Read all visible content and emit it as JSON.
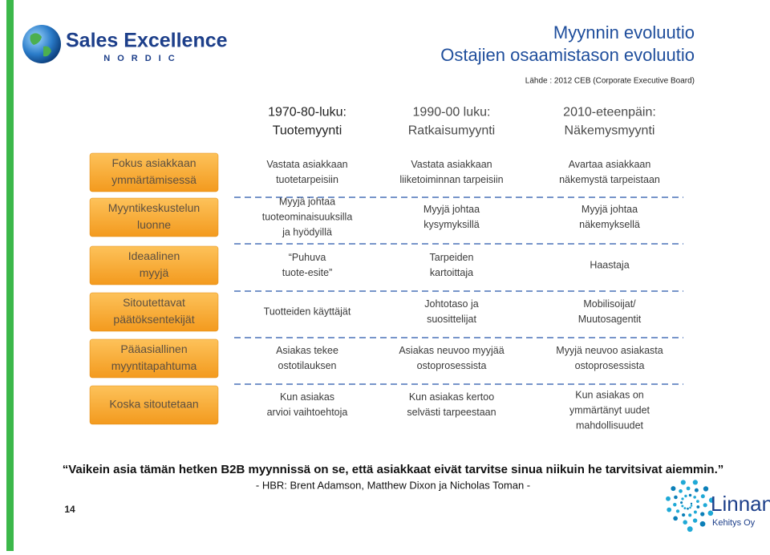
{
  "logo": {
    "name": "Sales Excellence",
    "sub": "NORDIC"
  },
  "header": {
    "title": "Myynnin evoluutio",
    "subtitle": "Ostajien osaamistason evoluutio",
    "source": "Lähde : 2012 CEB (Corporate Executive Board)"
  },
  "columns": [
    [
      "1970-80-luku:",
      "Tuotemyynti"
    ],
    [
      "1990-00 luku:",
      "Ratkaisumyynti"
    ],
    [
      "2010-eteenpäin:",
      "Näkemysmyynti"
    ]
  ],
  "rows": [
    {
      "label": [
        "Fokus asiakkaan",
        "ymmärtämisessä"
      ],
      "cells": [
        [
          "Vastata asiakkaan",
          "tuotetarpeisiin"
        ],
        [
          "Vastata asiakkaan",
          "liiketoiminnan tarpeisiin"
        ],
        [
          "Avartaa asiakkaan",
          "näkemystä tarpeistaan"
        ]
      ]
    },
    {
      "label": [
        "Myyntikeskustelun",
        "luonne"
      ],
      "cells": [
        [
          "Myyjä johtaa",
          "tuoteominaisuuksilla",
          "ja hyödyillä"
        ],
        [
          "Myyjä johtaa",
          "kysymyksillä"
        ],
        [
          "Myyjä johtaa",
          "näkemyksellä"
        ]
      ]
    },
    {
      "label": [
        "Ideaalinen",
        "myyjä"
      ],
      "cells": [
        [
          "“Puhuva",
          "tuote-esite”"
        ],
        [
          "Tarpeiden",
          "kartoittaja"
        ],
        [
          "Haastaja"
        ]
      ]
    },
    {
      "label": [
        "Sitoutettavat",
        "päätöksentekijät"
      ],
      "cells": [
        [
          "Tuotteiden käyttäjät"
        ],
        [
          "Johtotaso ja",
          "suosittelijat"
        ],
        [
          "Mobilisoijat/",
          "Muutosagentit"
        ]
      ]
    },
    {
      "label": [
        "Pääasiallinen",
        "myyntitapahtuma"
      ],
      "cells": [
        [
          "Asiakas tekee",
          "ostotilauksen"
        ],
        [
          "Asiakas neuvoo myyjää",
          "ostoprosessista"
        ],
        [
          "Myyjä neuvoo asiakasta",
          "ostoprosessista"
        ]
      ]
    },
    {
      "label": [
        "Koska sitoutetaan"
      ],
      "cells": [
        [
          "Kun asiakas",
          "arvioi vaihtoehtoja"
        ],
        [
          "Kun asiakas kertoo",
          "selvästi tarpeestaan"
        ],
        [
          "Kun asiakas on",
          "ymmärtänyt uudet",
          "mahdollisuudet"
        ]
      ]
    }
  ],
  "quote": "“Vaikein asia tämän hetken B2B myynnissä on se, että asiakkaat eivät tarvitse sinua niikuin he tarvitsivat aiemmin.”",
  "attribution": "- HBR: Brent Adamson, Matthew Dixon ja Nicholas Toman -",
  "page_number": "14",
  "footer_logo": {
    "name": "Linnan",
    "sub": "Kehitys Oy"
  }
}
